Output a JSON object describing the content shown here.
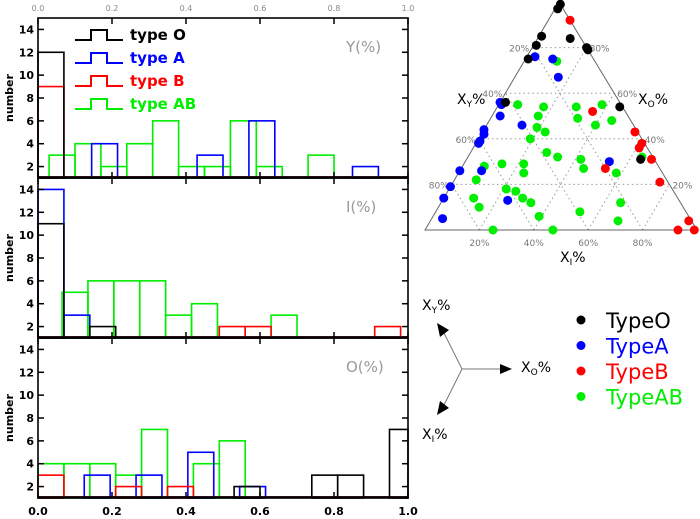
{
  "colors": {
    "TypeO": "#000000",
    "TypeA": "#0000ff",
    "TypeB": "#ff0000",
    "TypeAB": "#00ee00"
  },
  "chart_data": [
    {
      "type": "bar",
      "subtype": "step-histogram",
      "panel_label": "Y(%)",
      "ylabel": "number",
      "xlim": [
        0,
        1.0
      ],
      "ylim": [
        1,
        15
      ],
      "x_ticks": [
        "0.0",
        "0.2",
        "0.4",
        "0.6",
        "0.8",
        "1.0"
      ],
      "y_ticks": [
        "2",
        "4",
        "6",
        "8",
        "10",
        "12",
        "14"
      ],
      "legend": [
        "type O",
        "type A",
        "type B",
        "type AB"
      ],
      "legend_position": "top-left",
      "series": [
        {
          "name": "type O",
          "color": "#000000",
          "bins": [
            [
              0,
              0.07,
              12
            ]
          ]
        },
        {
          "name": "type A",
          "color": "#0000ff",
          "bins": [
            [
              0.145,
              0.215,
              4
            ],
            [
              0.43,
              0.5,
              3
            ],
            [
              0.57,
              0.64,
              6
            ],
            [
              0.85,
              0.92,
              2
            ]
          ]
        },
        {
          "name": "type B",
          "color": "#ff0000",
          "bins": [
            [
              0,
              0.07,
              9
            ]
          ]
        },
        {
          "name": "type AB",
          "color": "#00ee00",
          "bins": [
            [
              0.03,
              0.1,
              3
            ],
            [
              0.1,
              0.17,
              4
            ],
            [
              0.17,
              0.24,
              2
            ],
            [
              0.24,
              0.31,
              4
            ],
            [
              0.31,
              0.38,
              6
            ],
            [
              0.38,
              0.45,
              2
            ],
            [
              0.45,
              0.52,
              2
            ],
            [
              0.52,
              0.59,
              6
            ],
            [
              0.59,
              0.66,
              2
            ],
            [
              0.73,
              0.8,
              3
            ]
          ]
        }
      ]
    },
    {
      "type": "bar",
      "subtype": "step-histogram",
      "panel_label": "I(%)",
      "ylabel": "number",
      "xlim": [
        0,
        1.0
      ],
      "ylim": [
        1,
        15
      ],
      "y_ticks": [
        "2",
        "4",
        "6",
        "8",
        "10",
        "12",
        "14"
      ],
      "series": [
        {
          "name": "type O",
          "color": "#000000",
          "bins": [
            [
              0,
              0.07,
              11
            ],
            [
              0.14,
              0.21,
              2
            ]
          ]
        },
        {
          "name": "type A",
          "color": "#0000ff",
          "bins": [
            [
              0,
              0.07,
              14
            ],
            [
              0.07,
              0.14,
              3
            ]
          ]
        },
        {
          "name": "type B",
          "color": "#ff0000",
          "bins": [
            [
              0.49,
              0.56,
              2
            ],
            [
              0.56,
              0.63,
              2
            ],
            [
              0.91,
              0.98,
              2
            ]
          ]
        },
        {
          "name": "type AB",
          "color": "#00ee00",
          "bins": [
            [
              0.065,
              0.135,
              5
            ],
            [
              0.135,
              0.205,
              6
            ],
            [
              0.205,
              0.275,
              6
            ],
            [
              0.275,
              0.345,
              6
            ],
            [
              0.345,
              0.415,
              3
            ],
            [
              0.415,
              0.485,
              4
            ],
            [
              0.63,
              0.7,
              3
            ]
          ]
        }
      ]
    },
    {
      "type": "bar",
      "subtype": "step-histogram",
      "panel_label": "O(%)",
      "ylabel": "number",
      "xlim": [
        0,
        1.0
      ],
      "ylim": [
        1,
        15
      ],
      "x_ticks": [
        "0.0",
        "0.2",
        "0.4",
        "0.6",
        "0.8",
        "1.0"
      ],
      "y_ticks": [
        "2",
        "4",
        "6",
        "8",
        "10",
        "12",
        "14"
      ],
      "series": [
        {
          "name": "type O",
          "color": "#000000",
          "bins": [
            [
              0.53,
              0.6,
              2
            ],
            [
              0.74,
              0.81,
              3
            ],
            [
              0.81,
              0.88,
              3
            ],
            [
              0.95,
              1.0,
              7
            ]
          ]
        },
        {
          "name": "type A",
          "color": "#0000ff",
          "bins": [
            [
              0.125,
              0.195,
              3
            ],
            [
              0.265,
              0.335,
              3
            ],
            [
              0.405,
              0.475,
              5
            ],
            [
              0.545,
              0.615,
              2
            ]
          ]
        },
        {
          "name": "type B",
          "color": "#ff0000",
          "bins": [
            [
              0,
              0.07,
              3
            ],
            [
              0.21,
              0.28,
              2
            ],
            [
              0.35,
              0.42,
              2
            ]
          ]
        },
        {
          "name": "type AB",
          "color": "#00ee00",
          "bins": [
            [
              0,
              0.07,
              4
            ],
            [
              0.07,
              0.14,
              4
            ],
            [
              0.14,
              0.21,
              4
            ],
            [
              0.21,
              0.28,
              3
            ],
            [
              0.28,
              0.35,
              7
            ],
            [
              0.42,
              0.49,
              4
            ],
            [
              0.49,
              0.56,
              6
            ]
          ]
        }
      ]
    },
    {
      "type": "scatter",
      "subtype": "ternary",
      "axes": {
        "left_corner": "X_Y%",
        "top_corner": "X_O%",
        "right_corner": "X_I%"
      },
      "axis_labels": {
        "y": "X",
        "y_sub": "Y",
        "o": "X",
        "o_sub": "O",
        "i": "X",
        "i_sub": "I"
      },
      "tick_labels": [
        "20%",
        "40%",
        "60%",
        "80%"
      ],
      "grid": "dotted",
      "point_format": "[X_Y, X_I, X_O]",
      "legend": [
        "TypeO",
        "TypeA",
        "TypeB",
        "TypeAB"
      ],
      "legend_position": "bottom-right",
      "series": [
        {
          "name": "TypeO",
          "color": "#000000",
          "points": [
            [
              0,
              0.01,
              0.99
            ],
            [
              0.02,
              0.01,
              0.97
            ],
            [
              0.04,
              0.12,
              0.84
            ],
            [
              0.14,
              0.01,
              0.85
            ],
            [
              0.18,
              0.01,
              0.81
            ],
            [
              0.24,
              0.01,
              0.75
            ],
            [
              0,
              0.2,
              0.8
            ],
            [
              0,
              0.21,
              0.79
            ],
            [
              0.42,
              0.02,
              0.56
            ],
            [
              0.01,
              0.45,
              0.54
            ],
            [
              0.05,
              0.64,
              0.31
            ]
          ]
        },
        {
          "name": "TypeA",
          "color": "#0000ff",
          "points": [
            [
              0.21,
              0.03,
              0.76
            ],
            [
              0.15,
              0.1,
              0.75
            ],
            [
              0.17,
              0.16,
              0.67
            ],
            [
              0.44,
              0,
              0.56
            ],
            [
              0.44,
              0.01,
              0.55
            ],
            [
              0.47,
              0.03,
              0.5
            ],
            [
              0.41,
              0.13,
              0.46
            ],
            [
              0.56,
              0,
              0.44
            ],
            [
              0.57,
              0.01,
              0.42
            ],
            [
              0.6,
              0.01,
              0.39
            ],
            [
              0.61,
              0.01,
              0.38
            ],
            [
              0.74,
              0,
              0.26
            ],
            [
              0.66,
              0.08,
              0.26
            ],
            [
              0.81,
              0,
              0.19
            ],
            [
              0.86,
              0,
              0.14
            ],
            [
              0.91,
              0.04,
              0.05
            ],
            [
              0.63,
              0.24,
              0.13
            ],
            [
              0.17,
              0.53,
              0.3
            ]
          ]
        },
        {
          "name": "TypeB",
          "color": "#ff0000",
          "points": [
            [
              0,
              0.08,
              0.92
            ],
            [
              0.12,
              0.36,
              0.52
            ],
            [
              0.01,
              0.56,
              0.43
            ],
            [
              0.01,
              0.61,
              0.38
            ],
            [
              0.03,
              0.61,
              0.36
            ],
            [
              0.01,
              0.68,
              0.31
            ],
            [
              0.2,
              0.53,
              0.27
            ],
            [
              0.03,
              0.76,
              0.21
            ],
            [
              0.01,
              0.95,
              0.04
            ],
            [
              0.07,
              0.93,
              0
            ],
            [
              0.01,
              0.99,
              0
            ]
          ]
        },
        {
          "name": "TypeAB",
          "color": "#00ee00",
          "points": [
            [
              0.14,
              0.12,
              0.74
            ],
            [
              0.38,
              0.07,
              0.55
            ],
            [
              0.29,
              0.17,
              0.54
            ],
            [
              0.33,
              0.17,
              0.5
            ],
            [
              0.36,
              0.19,
              0.45
            ],
            [
              0.34,
              0.23,
              0.43
            ],
            [
              0.41,
              0.19,
              0.4
            ],
            [
              0.17,
              0.29,
              0.54
            ],
            [
              0.07,
              0.38,
              0.55
            ],
            [
              0.19,
              0.32,
              0.49
            ],
            [
              0.14,
              0.4,
              0.46
            ],
            [
              0.07,
              0.45,
              0.48
            ],
            [
              0.38,
              0.28,
              0.34
            ],
            [
              0.35,
              0.33,
              0.32
            ],
            [
              0.27,
              0.42,
              0.31
            ],
            [
              0.28,
              0.45,
              0.27
            ],
            [
              0.17,
              0.58,
              0.25
            ],
            [
              0.64,
              0.08,
              0.28
            ],
            [
              0.57,
              0.14,
              0.29
            ],
            [
              0.49,
              0.22,
              0.29
            ],
            [
              0.51,
              0.24,
              0.25
            ],
            [
              0.7,
              0.08,
              0.22
            ],
            [
              0.61,
              0.21,
              0.18
            ],
            [
              0.58,
              0.25,
              0.17
            ],
            [
              0.75,
              0.11,
              0.14
            ],
            [
              0.75,
              0.15,
              0.1
            ],
            [
              0.57,
              0.29,
              0.14
            ],
            [
              0.55,
              0.33,
              0.12
            ],
            [
              0.55,
              0.39,
              0.06
            ],
            [
              0.39,
              0.53,
              0.08
            ],
            [
              0.22,
              0.66,
              0.12
            ],
            [
              0.27,
              0.69,
              0.04
            ],
            [
              0.75,
              0.25,
              0
            ],
            [
              0.53,
              0.47,
              0
            ],
            [
              0.04,
              0.64,
              0.32
            ]
          ]
        }
      ]
    }
  ],
  "direction_key": {
    "y": "X",
    "y_sub": "Y",
    "o": "X",
    "o_sub": "O",
    "i": "X",
    "i_sub": "I",
    "pct": "%"
  },
  "histogram_legend": [
    "type O",
    "type A",
    "type B",
    "type AB"
  ],
  "ternary_legend": [
    "TypeO",
    "TypeA",
    "TypeB",
    "TypeAB"
  ]
}
